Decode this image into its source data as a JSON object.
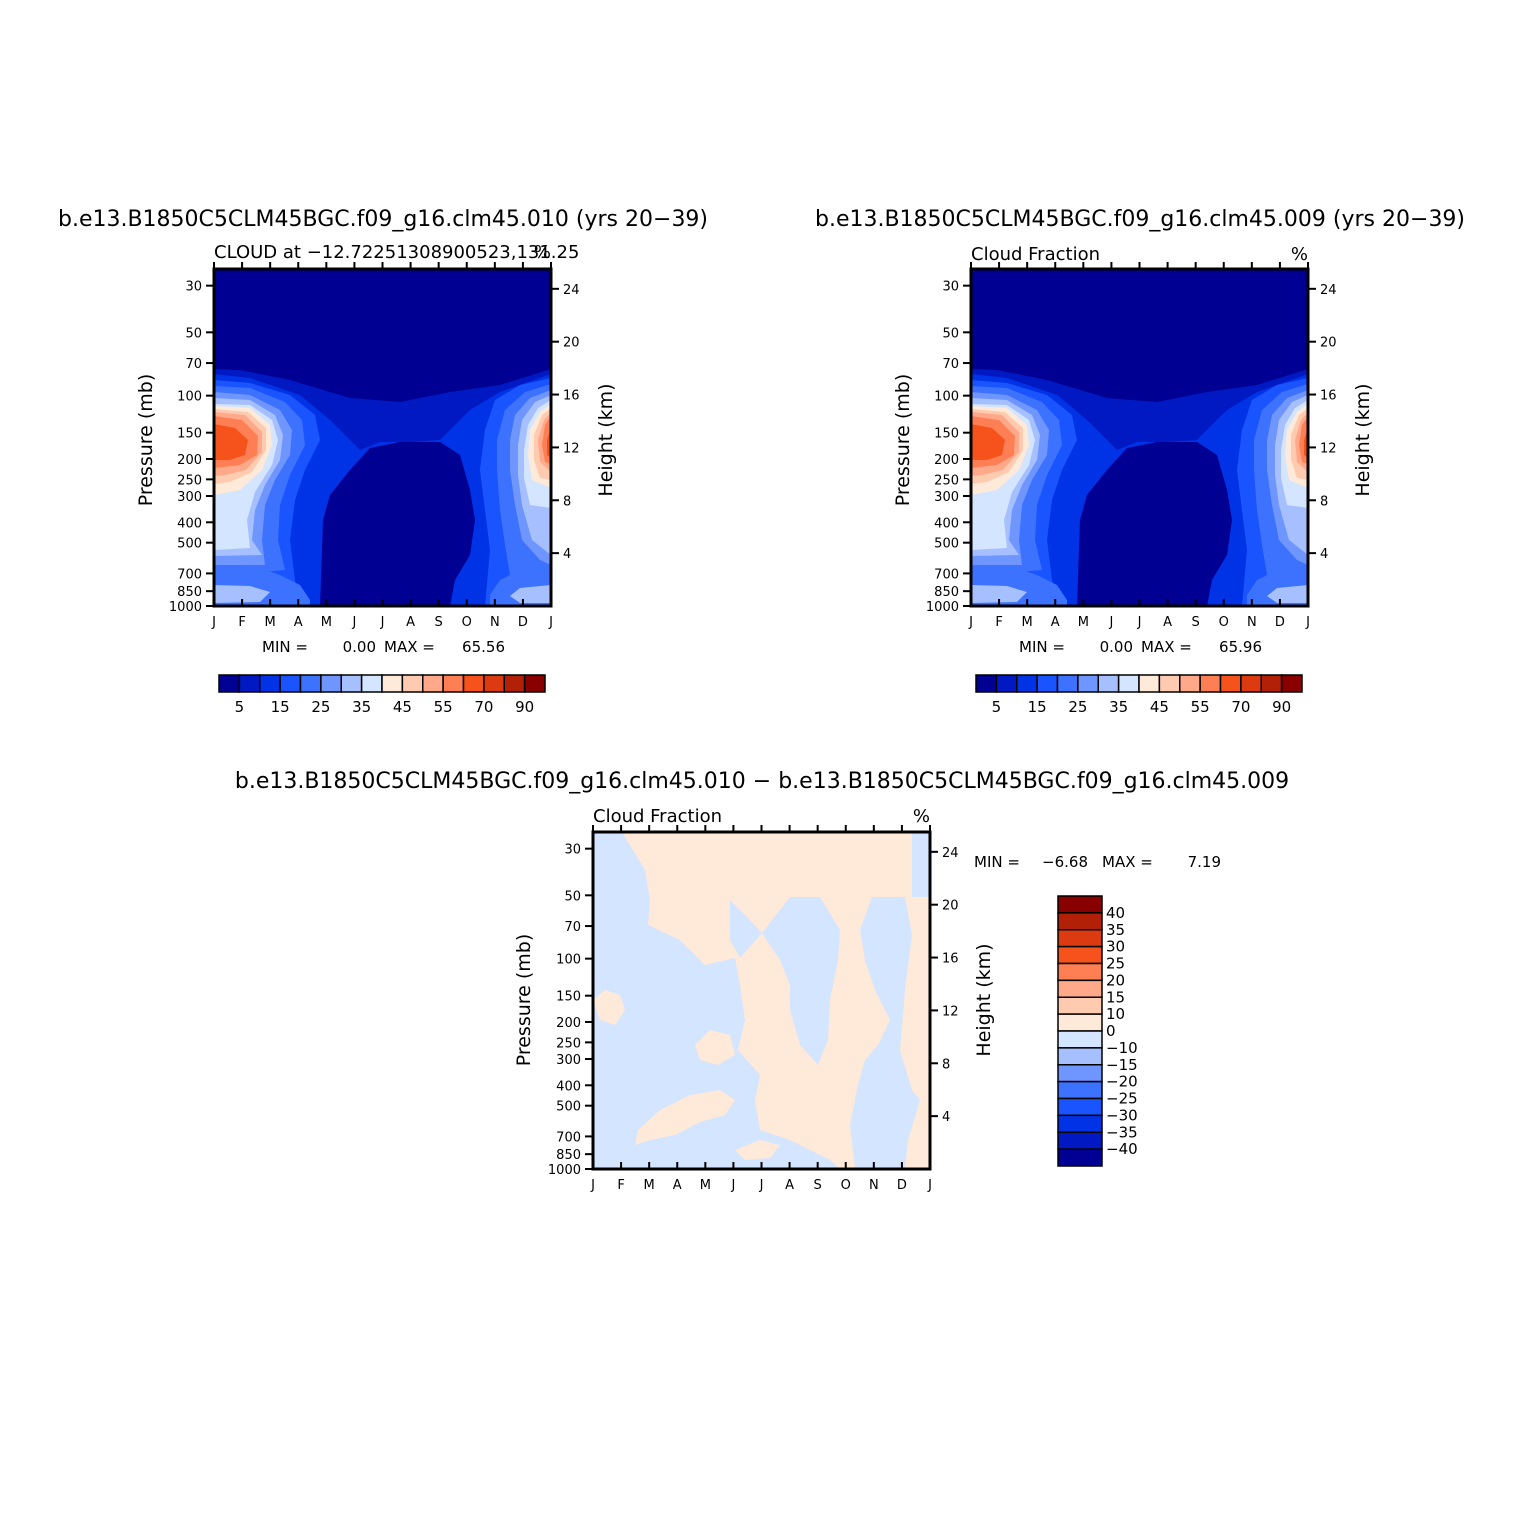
{
  "page": {
    "background": "#ffffff"
  },
  "chart_data": [
    {
      "type": "heatmap",
      "title": "b.e13.B1850C5CLM45BGC.f09_g16.clm45.010 (yrs 20−39)",
      "left_string": "CLOUD at −12.72251308900523,131.25",
      "right_string": "%",
      "ylabel": "Pressure (mb)",
      "y2label": "Height (km)",
      "x_tick_labels": [
        "J",
        "F",
        "M",
        "A",
        "M",
        "J",
        "J",
        "A",
        "S",
        "O",
        "N",
        "D",
        "J"
      ],
      "y_ticks": [
        30,
        50,
        70,
        100,
        150,
        200,
        250,
        300,
        400,
        500,
        700,
        850,
        1000
      ],
      "y2_ticks": [
        24,
        20,
        16,
        12,
        8,
        4
      ],
      "ylim": [
        1000,
        25
      ],
      "y_scale": "log",
      "min_label": "MIN =",
      "min_value": "0.00",
      "max_label": "MAX =",
      "max_value": "65.56",
      "min": 0.0,
      "max": 65.56,
      "colorbar_orientation": "horizontal",
      "colorbar_labels": [
        "5",
        "15",
        "25",
        "35",
        "45",
        "55",
        "70",
        "90"
      ],
      "colorbar_colors": [
        "#000092",
        "#0019c3",
        "#0033e6",
        "#1a54ff",
        "#3d72ff",
        "#6f95ff",
        "#a6c0ff",
        "#d4e5ff",
        "#ffe9d9",
        "#ffcbb0",
        "#ffa98a",
        "#ff7f55",
        "#f6531c",
        "#dc3a10",
        "#b22007",
        "#880000"
      ],
      "field_description": "monthly pressure-time cloud fraction; high values near 150-200 mb in Jan-Feb and Dec; near-zero upper levels and Jun-Sep mid levels"
    },
    {
      "type": "heatmap",
      "title": "b.e13.B1850C5CLM45BGC.f09_g16.clm45.009 (yrs 20−39)",
      "left_string": "Cloud Fraction",
      "right_string": "%",
      "ylabel": "Pressure (mb)",
      "y2label": "Height (km)",
      "x_tick_labels": [
        "J",
        "F",
        "M",
        "A",
        "M",
        "J",
        "J",
        "A",
        "S",
        "O",
        "N",
        "D",
        "J"
      ],
      "y_ticks": [
        30,
        50,
        70,
        100,
        150,
        200,
        250,
        300,
        400,
        500,
        700,
        850,
        1000
      ],
      "y2_ticks": [
        24,
        20,
        16,
        12,
        8,
        4
      ],
      "ylim": [
        1000,
        25
      ],
      "y_scale": "log",
      "min_label": "MIN =",
      "min_value": "0.00",
      "max_label": "MAX =",
      "max_value": "65.96",
      "min": 0.0,
      "max": 65.96,
      "colorbar_orientation": "horizontal",
      "colorbar_labels": [
        "5",
        "15",
        "25",
        "35",
        "45",
        "55",
        "70",
        "90"
      ],
      "colorbar_colors": [
        "#000092",
        "#0019c3",
        "#0033e6",
        "#1a54ff",
        "#3d72ff",
        "#6f95ff",
        "#a6c0ff",
        "#d4e5ff",
        "#ffe9d9",
        "#ffcbb0",
        "#ffa98a",
        "#ff7f55",
        "#f6531c",
        "#dc3a10",
        "#b22007",
        "#880000"
      ]
    },
    {
      "type": "heatmap",
      "title": "b.e13.B1850C5CLM45BGC.f09_g16.clm45.010 − b.e13.B1850C5CLM45BGC.f09_g16.clm45.009",
      "left_string": "Cloud Fraction",
      "right_string": "%",
      "ylabel": "Pressure (mb)",
      "y2label": "Height (km)",
      "x_tick_labels": [
        "J",
        "F",
        "M",
        "A",
        "M",
        "J",
        "J",
        "A",
        "S",
        "O",
        "N",
        "D",
        "J"
      ],
      "y_ticks": [
        30,
        50,
        70,
        100,
        150,
        200,
        250,
        300,
        400,
        500,
        700,
        850,
        1000
      ],
      "y2_ticks": [
        24,
        20,
        16,
        12,
        8,
        4
      ],
      "ylim": [
        1000,
        25
      ],
      "y_scale": "log",
      "min_label": "MIN =",
      "min_value": "−6.68",
      "max_label": "MAX =",
      "max_value": "7.19",
      "min": -6.68,
      "max": 7.19,
      "colorbar_orientation": "vertical",
      "colorbar_labels": [
        "40",
        "35",
        "30",
        "25",
        "20",
        "15",
        "10",
        "0",
        "−10",
        "−15",
        "−20",
        "−25",
        "−30",
        "−35",
        "−40"
      ],
      "colorbar_colors": [
        "#880000",
        "#b22007",
        "#dc3a10",
        "#f6531c",
        "#ff7f55",
        "#ffa98a",
        "#ffcbb0",
        "#ffe9d9",
        "#d4e5ff",
        "#a6c0ff",
        "#6f95ff",
        "#3d72ff",
        "#1a54ff",
        "#0033e6",
        "#0019c3",
        "#000092"
      ],
      "field_colors": {
        "positive": "#ffe9d9",
        "negative": "#d4e5ff"
      }
    }
  ]
}
